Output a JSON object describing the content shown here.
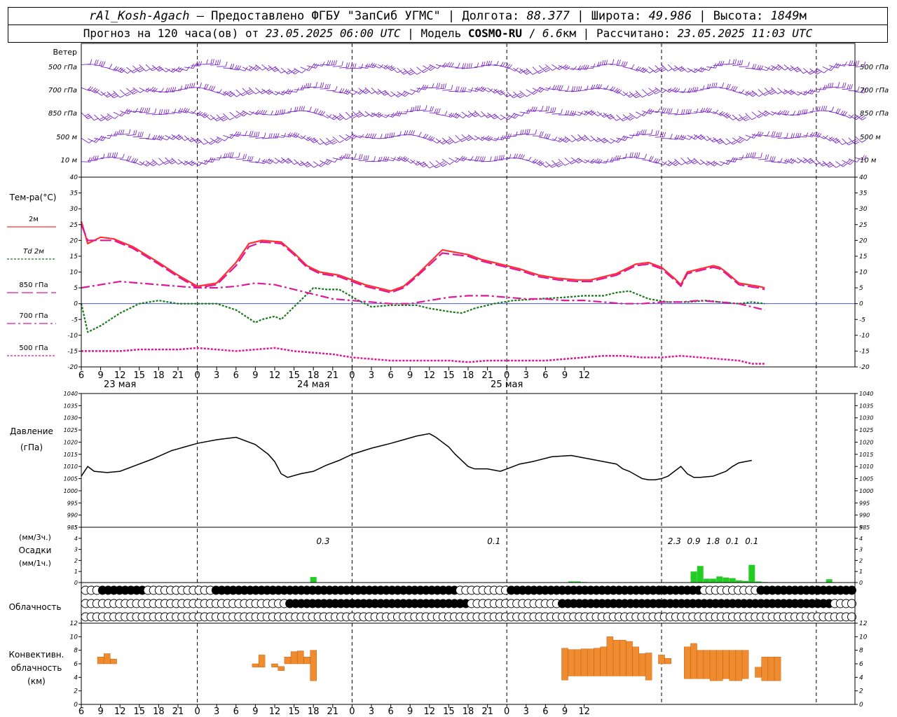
{
  "header": {
    "station": "rAl_Kosh-Agach",
    "sep": " – ",
    "provider": "Предоставлено ФГБУ \"ЗапСиб УГМС\"",
    "lon_label": "Долгота:",
    "lon": "88.377",
    "lat_label": "Широта:",
    "lat": "49.986",
    "alt_label": "Высота:",
    "alt": "1849",
    "alt_unit": "м",
    "fc_prefix": "Прогноз на 120 часа(ов) от",
    "fc_time": "23.05.2025 06:00 UTC",
    "model_label": "Модель",
    "model": "COSMO-RU",
    "resolution": "6.6",
    "res_unit": "км",
    "calc_label": "Рассчитано:",
    "calc_time": "23.05.2025 11:03 UTC"
  },
  "colors": {
    "t2m": "#ff3030",
    "td2m": "#1a7a1a",
    "t850": "#e01898",
    "t700": "#e01898",
    "t500": "#e01898",
    "wind": "#7a28c8",
    "precip": "#22cc22",
    "conv": "#f08c30"
  },
  "chart_data": [
    {
      "panel": "wind",
      "type": "other",
      "title": "Ветер",
      "levels": [
        "500 гПа",
        "700 гПа",
        "850 гПа",
        "500 м",
        "10 м"
      ]
    },
    {
      "panel": "temperature",
      "type": "line",
      "ylabel": "Тем-ра(°С)",
      "ylim": [
        -20,
        40
      ],
      "yticks": [
        -20,
        -15,
        -10,
        -5,
        0,
        5,
        10,
        15,
        20,
        25,
        30,
        35,
        40
      ],
      "xlim": [
        6,
        126
      ],
      "x_tick_labels": [
        "6",
        "9",
        "12",
        "15",
        "18",
        "21",
        "0",
        "3",
        "6",
        "9",
        "12",
        "15",
        "18",
        "21",
        "0",
        "3",
        "6",
        "9",
        "12",
        "15",
        "18",
        "21",
        "0",
        "3",
        "6",
        "9",
        "12"
      ],
      "date_labels": [
        {
          "x": 12,
          "text": "23 мая"
        },
        {
          "x": 42,
          "text": "24 мая"
        },
        {
          "x": 72,
          "text": "25 мая"
        }
      ],
      "series": [
        {
          "name": "2м",
          "key": "t2m",
          "x": [
            6,
            7,
            9,
            11,
            14,
            18,
            21,
            24,
            27,
            30,
            32,
            34,
            37,
            39,
            41,
            43,
            46,
            50,
            54,
            56,
            58,
            62,
            66,
            68,
            70,
            72,
            74,
            77,
            80,
            83,
            85,
            89,
            92,
            94,
            96,
            98,
            99,
            100,
            102,
            104,
            105,
            106,
            108,
            110,
            111,
            112
          ],
          "y": [
            26,
            19,
            21,
            20.5,
            18,
            13,
            9,
            5.5,
            6.5,
            13,
            19,
            20,
            19.5,
            16,
            12,
            10,
            9,
            6,
            4,
            5.5,
            9,
            17,
            15.5,
            14,
            13,
            12,
            11,
            9,
            8,
            7.5,
            7.5,
            9.5,
            12.5,
            13,
            11.5,
            8,
            6,
            10,
            11,
            12,
            11.5,
            10,
            6.5,
            5.8,
            5.5,
            5
          ]
        },
        {
          "name": "Td 2м",
          "key": "td2m",
          "x": [
            6,
            7,
            9,
            12,
            15,
            18,
            21,
            24,
            27,
            30,
            33,
            34,
            36,
            37,
            39,
            40,
            42,
            44,
            46,
            49,
            51,
            54,
            58,
            60,
            63,
            65,
            67,
            70,
            73,
            77,
            81,
            84,
            87,
            89,
            91,
            94,
            97,
            100,
            103,
            105,
            108,
            110,
            112
          ],
          "y": [
            0,
            -9,
            -7,
            -3,
            0,
            1,
            0,
            0,
            0,
            -2,
            -6,
            -5,
            -4,
            -5,
            -1,
            1,
            5,
            4.5,
            4.5,
            1,
            -1,
            -0.5,
            -0.5,
            -1.5,
            -2.5,
            -3,
            -1.5,
            0,
            1,
            1.5,
            2,
            2.5,
            2.5,
            3.5,
            4,
            1.5,
            0.5,
            0.5,
            1,
            0.5,
            0,
            0.5,
            0
          ]
        },
        {
          "name": "850 гПа",
          "key": "t850",
          "x": [
            6,
            7,
            9,
            11,
            14,
            18,
            21,
            24,
            27,
            30,
            32,
            34,
            37,
            39,
            41,
            43,
            46,
            50,
            54,
            56,
            58,
            62,
            66,
            68,
            70,
            72,
            74,
            77,
            80,
            83,
            85,
            89,
            92,
            94,
            96,
            98,
            99,
            100,
            102,
            104,
            105,
            106,
            108,
            110,
            111,
            112
          ],
          "y": [
            25,
            20,
            20,
            20,
            17.5,
            12.5,
            8.5,
            5,
            6,
            12,
            18,
            19.5,
            19,
            15.5,
            11.5,
            9.5,
            8.5,
            5.5,
            3.5,
            5,
            8.5,
            16,
            15,
            13.5,
            12.5,
            11.5,
            10.5,
            8.5,
            7.5,
            7,
            7,
            9,
            12,
            12.5,
            11,
            7.5,
            5.5,
            9.5,
            10.5,
            11.5,
            11,
            9.5,
            6,
            5.3,
            5,
            4.5
          ]
        },
        {
          "name": "700 гПа",
          "key": "t700",
          "x": [
            6,
            9,
            12,
            15,
            18,
            21,
            24,
            27,
            30,
            33,
            36,
            39,
            42,
            45,
            48,
            51,
            54,
            57,
            60,
            63,
            66,
            69,
            72,
            75,
            78,
            81,
            84,
            87,
            90,
            93,
            96,
            99,
            102,
            105,
            108,
            110,
            112
          ],
          "y": [
            5,
            6,
            7,
            6.5,
            6,
            5.5,
            5,
            5,
            5.5,
            6.5,
            6,
            4.5,
            3,
            1.5,
            1,
            0.5,
            0,
            0,
            1,
            2,
            2.5,
            2.5,
            2,
            1.5,
            1.5,
            1,
            1,
            0.5,
            0,
            0,
            0.5,
            0.5,
            1,
            0.5,
            0,
            -1,
            -2
          ]
        },
        {
          "name": "500 гПа",
          "key": "t500",
          "x": [
            6,
            9,
            12,
            15,
            18,
            21,
            24,
            27,
            30,
            33,
            36,
            39,
            42,
            45,
            48,
            51,
            54,
            57,
            60,
            63,
            66,
            69,
            72,
            75,
            78,
            81,
            84,
            87,
            90,
            93,
            96,
            99,
            102,
            105,
            108,
            110,
            112
          ],
          "y": [
            -15,
            -15,
            -15,
            -14.5,
            -14.5,
            -14.5,
            -14,
            -14.5,
            -15,
            -14.5,
            -14,
            -15,
            -15.5,
            -16,
            -17,
            -17.5,
            -18,
            -18,
            -18,
            -18,
            -18.5,
            -18,
            -18,
            -18,
            -18,
            -17.5,
            -17,
            -16.5,
            -16.5,
            -17,
            -17,
            -16.5,
            -17,
            -17.5,
            -18,
            -19,
            -19
          ]
        }
      ]
    },
    {
      "panel": "pressure",
      "type": "line",
      "ylabel": "Давление",
      "yunit": "(гПа)",
      "ylim": [
        985,
        1040
      ],
      "yticks": [
        985,
        990,
        995,
        1000,
        1005,
        1010,
        1015,
        1020,
        1025,
        1030,
        1035,
        1040
      ],
      "series": [
        {
          "name": "Давление",
          "x": [
            6,
            7,
            8,
            10,
            12,
            14,
            17,
            20,
            22,
            24,
            27,
            30,
            33,
            35,
            36,
            37,
            38,
            40,
            42,
            44,
            46,
            48,
            51,
            54,
            56,
            58,
            60,
            61,
            63,
            64,
            66,
            67,
            69,
            71,
            72,
            74,
            76,
            79,
            82,
            84,
            85,
            86,
            88,
            89,
            90,
            91,
            93,
            94,
            94.5,
            95,
            96,
            97,
            98,
            99,
            100,
            101,
            102,
            104,
            106,
            107,
            108,
            109,
            110
          ],
          "y": [
            1006,
            1010,
            1008,
            1007.5,
            1008,
            1010,
            1013,
            1016.5,
            1018,
            1019.5,
            1021,
            1022,
            1019,
            1015,
            1012,
            1007,
            1005.5,
            1007,
            1008,
            1010.5,
            1012.5,
            1015,
            1017.5,
            1019.5,
            1021,
            1022.5,
            1023.5,
            1022,
            1018,
            1015,
            1010,
            1009,
            1009,
            1008,
            1009,
            1011,
            1012,
            1014,
            1014.5,
            1013.5,
            1013,
            1012.5,
            1011.5,
            1011,
            1009,
            1008,
            1005,
            1004.5,
            1004.5,
            1004.5,
            1005,
            1006,
            1008,
            1010,
            1007,
            1005.5,
            1005.5,
            1006,
            1008,
            1010,
            1011.5,
            1012,
            1012.5
          ]
        }
      ]
    },
    {
      "panel": "precipitation",
      "type": "bar",
      "ylabel": "Осадки",
      "unit_top": "(мм/3ч.)",
      "unit_bottom": "(мм/1ч.)",
      "ylim": [
        0,
        5
      ],
      "yticks": [
        0,
        1,
        2,
        3,
        4,
        5
      ],
      "hourly_x": [
        42,
        82,
        83,
        84,
        101,
        102,
        103,
        104,
        105,
        106,
        107,
        108,
        109,
        110,
        111,
        112,
        122
      ],
      "hourly_values": [
        0.5,
        0.1,
        0.1,
        0.05,
        1.0,
        1.5,
        0.35,
        0.35,
        0.55,
        0.45,
        0.4,
        0.2,
        0.15,
        1.6,
        0.1,
        0.05,
        0.3
      ],
      "totals_3h": [
        {
          "x": 43.5,
          "value": "0.3"
        },
        {
          "x": 70,
          "value": "0.1"
        },
        {
          "x": 98,
          "value": "2.3"
        },
        {
          "x": 101,
          "value": "0.9"
        },
        {
          "x": 104,
          "value": "1.8"
        },
        {
          "x": 107,
          "value": "0.1"
        },
        {
          "x": 110,
          "value": "0.1"
        }
      ]
    },
    {
      "panel": "cloudiness",
      "type": "other",
      "ylabel": "Облачность",
      "rows": [
        "000FFFFFFFF000000000000FFFFFFFFFFFFFFFFFFFFFFFFFFFFFFFFFFFFFFFFFFF000000000FFFFFFFFFFFFFFFFFFFFFFFFFFFFFFFFFF0000000000FFFFFFFFFFFFFFFFFF",
        "000000000000000000000000000000000000FFFFFFFFFFFFFFFFFFFFFFFFFFFFFFFF0000000000000000FFFFFFFFFFFFFFFFFFFFFFFFFFFFFFFFFFFFFFFFFFFFFFFF00000",
        "0000000000000000000000000000000000000000000000000000000000000000000000000000000000000000000000000000000000000000000000000000000000000000"
      ]
    },
    {
      "panel": "convective",
      "type": "bar",
      "ylabel": "Конвективн.",
      "ylabel2": "облачность",
      "yunit": "(км)",
      "ylim": [
        0,
        12
      ],
      "yticks": [
        0,
        2,
        4,
        6,
        8,
        10,
        12
      ],
      "bars": [
        {
          "x": 9,
          "base": 6,
          "top": 7
        },
        {
          "x": 10,
          "base": 6,
          "top": 7.5
        },
        {
          "x": 11,
          "base": 6,
          "top": 6.7
        },
        {
          "x": 33,
          "base": 5.5,
          "top": 6
        },
        {
          "x": 34,
          "base": 5.5,
          "top": 7.3
        },
        {
          "x": 36,
          "base": 5.5,
          "top": 6
        },
        {
          "x": 37,
          "base": 5,
          "top": 5.6
        },
        {
          "x": 38,
          "base": 6,
          "top": 7
        },
        {
          "x": 39,
          "base": 6,
          "top": 7.8
        },
        {
          "x": 40,
          "base": 6,
          "top": 7.9
        },
        {
          "x": 41,
          "base": 6,
          "top": 7
        },
        {
          "x": 42,
          "base": 3.5,
          "top": 8
        },
        {
          "x": 81,
          "base": 3.6,
          "top": 8.3
        },
        {
          "x": 82,
          "base": 4.2,
          "top": 8.1
        },
        {
          "x": 83,
          "base": 4.2,
          "top": 8.1
        },
        {
          "x": 84,
          "base": 4.2,
          "top": 8.2
        },
        {
          "x": 85,
          "base": 4.2,
          "top": 8.2
        },
        {
          "x": 86,
          "base": 4.2,
          "top": 8.3
        },
        {
          "x": 87,
          "base": 4.2,
          "top": 8.5
        },
        {
          "x": 88,
          "base": 4.2,
          "top": 10
        },
        {
          "x": 89,
          "base": 4.2,
          "top": 9.5
        },
        {
          "x": 90,
          "base": 4.2,
          "top": 9.5
        },
        {
          "x": 91,
          "base": 4.2,
          "top": 9.3
        },
        {
          "x": 92,
          "base": 4.2,
          "top": 8.5
        },
        {
          "x": 93,
          "base": 4.2,
          "top": 7.5
        },
        {
          "x": 94,
          "base": 3.6,
          "top": 7.6
        },
        {
          "x": 96,
          "base": 6,
          "top": 7.3
        },
        {
          "x": 97,
          "base": 6,
          "top": 6.8
        },
        {
          "x": 100,
          "base": 3.8,
          "top": 8.5
        },
        {
          "x": 101,
          "base": 3.8,
          "top": 9
        },
        {
          "x": 102,
          "base": 3.8,
          "top": 8
        },
        {
          "x": 103,
          "base": 3.8,
          "top": 8
        },
        {
          "x": 104,
          "base": 3.5,
          "top": 8
        },
        {
          "x": 105,
          "base": 3.5,
          "top": 8
        },
        {
          "x": 106,
          "base": 3.8,
          "top": 8
        },
        {
          "x": 107,
          "base": 3.5,
          "top": 8
        },
        {
          "x": 108,
          "base": 3.5,
          "top": 8
        },
        {
          "x": 109,
          "base": 3.8,
          "top": 8
        },
        {
          "x": 111,
          "base": 4,
          "top": 5.5
        },
        {
          "x": 112,
          "base": 3.5,
          "top": 7
        },
        {
          "x": 113,
          "base": 3.5,
          "top": 7
        },
        {
          "x": 114,
          "base": 3.5,
          "top": 7
        }
      ]
    }
  ]
}
